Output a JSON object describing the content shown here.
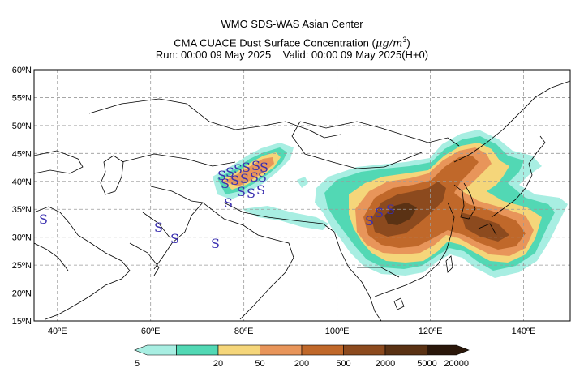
{
  "header": {
    "line1": "WMO SDS-WAS Asian Center",
    "line2_prefix": "CMA CUACE Dust Surface Concentration (",
    "line2_unit": "μg/m",
    "line2_sup": "3",
    "line2_suffix": ")",
    "run": "Run: 00:00 09 May 2025",
    "valid": "Valid: 00:00 09 May 2025(H+0)"
  },
  "map": {
    "lon_range": [
      35,
      150
    ],
    "lat_range": [
      15,
      60
    ],
    "lat_ticks": [
      "60ºN",
      "55ºN",
      "50ºN",
      "45ºN",
      "40ºN",
      "35ºN",
      "30ºN",
      "25ºN",
      "20ºN",
      "15ºN"
    ],
    "lon_ticks": [
      "40ºE",
      "60ºE",
      "80ºE",
      "100ºE",
      "120ºE",
      "140ºE"
    ],
    "gridlines": true,
    "dust_storm_symbol": "S",
    "dust_storm_color": "#3a2fb0"
  },
  "colorbar": {
    "levels": [
      "5",
      "20",
      "50",
      "200",
      "500",
      "2000",
      "5000",
      "20000"
    ],
    "colors": [
      "#a8eee2",
      "#52d8b4",
      "#f5d67a",
      "#e8955a",
      "#c0682a",
      "#8c4a1e",
      "#5a3214",
      "#2a170a"
    ]
  }
}
